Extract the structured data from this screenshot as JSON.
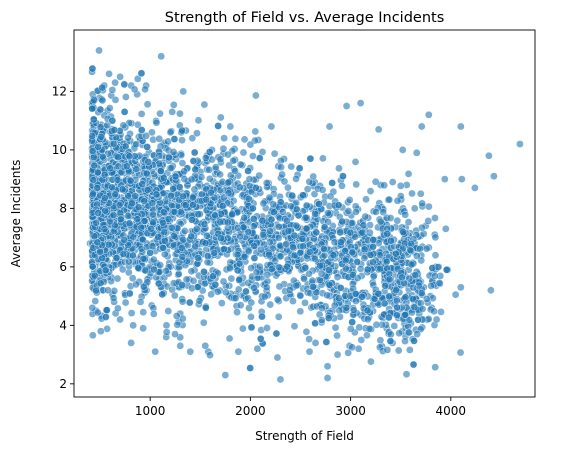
{
  "chart_data": {
    "type": "scatter",
    "title": "Strength of Field vs. Average Incidents",
    "xlabel": "Strength of Field",
    "ylabel": "Average Incidents",
    "xlim": [
      240,
      4840
    ],
    "ylim": [
      1.55,
      14.1
    ],
    "xticks": [
      {
        "value": 1000,
        "label": "1000"
      },
      {
        "value": 2000,
        "label": "2000"
      },
      {
        "value": 3000,
        "label": "3000"
      },
      {
        "value": 4000,
        "label": "4000"
      }
    ],
    "yticks": [
      {
        "value": 2,
        "label": "2"
      },
      {
        "value": 4,
        "label": "4"
      },
      {
        "value": 6,
        "label": "6"
      },
      {
        "value": 8,
        "label": "8"
      },
      {
        "value": 10,
        "label": "10"
      },
      {
        "value": 12,
        "label": "12"
      }
    ],
    "grid": false,
    "marker_color": "#1f77b4",
    "marker_edge_color": "#ffffff",
    "marker_alpha": 0.6,
    "point_count": 3500,
    "points": [
      [
        490,
        13.4
      ],
      [
        590,
        12.6
      ],
      [
        650,
        12.3
      ],
      [
        700,
        12.5
      ],
      [
        810,
        12.2
      ],
      [
        870,
        11.9
      ],
      [
        960,
        12.2
      ],
      [
        1110,
        13.2
      ],
      [
        1330,
        12.0
      ],
      [
        1220,
        11.3
      ],
      [
        2960,
        11.5
      ],
      [
        3100,
        11.6
      ],
      [
        3780,
        11.2
      ],
      [
        4100,
        10.8
      ],
      [
        4690,
        10.2
      ],
      [
        3710,
        10.8
      ],
      [
        4380,
        9.8
      ],
      [
        4430,
        9.1
      ],
      [
        4240,
        8.7
      ],
      [
        4110,
        9.0
      ],
      [
        3520,
        10.0
      ],
      [
        3940,
        9.0
      ],
      [
        3660,
        9.9
      ],
      [
        3280,
        10.7
      ],
      [
        2790,
        10.8
      ],
      [
        2210,
        10.8
      ],
      [
        1800,
        10.8
      ],
      [
        2070,
        3.2
      ],
      [
        2300,
        2.15
      ],
      [
        2770,
        2.2
      ],
      [
        2770,
        2.6
      ],
      [
        1580,
        3.1
      ],
      [
        1750,
        2.3
      ],
      [
        1050,
        3.1
      ],
      [
        3080,
        3.2
      ],
      [
        2870,
        3.0
      ],
      [
        2590,
        3.1
      ],
      [
        3360,
        3.9
      ],
      [
        3440,
        4.4
      ],
      [
        3810,
        4.6
      ],
      [
        4100,
        5.3
      ],
      [
        4400,
        5.2
      ],
      [
        3730,
        5.3
      ],
      [
        3520,
        6.3
      ],
      [
        3580,
        5.9
      ],
      [
        3880,
        6.0
      ],
      [
        3970,
        5.9
      ],
      [
        3840,
        7.1
      ],
      [
        3950,
        7.3
      ],
      [
        3750,
        7.4
      ],
      [
        3640,
        8.0
      ],
      [
        3700,
        8.5
      ],
      [
        3560,
        8.8
      ],
      [
        3420,
        8.9
      ],
      [
        3300,
        8.8
      ],
      [
        3230,
        7.9
      ],
      [
        3110,
        7.1
      ],
      [
        3020,
        7.0
      ],
      [
        3170,
        6.6
      ],
      [
        3280,
        5.9
      ],
      [
        420,
        7.3
      ],
      [
        400,
        6.8
      ],
      [
        460,
        4.5
      ],
      [
        520,
        5.2
      ],
      [
        560,
        4.3
      ],
      [
        640,
        4.8
      ],
      [
        700,
        4.2
      ],
      [
        810,
        3.4
      ],
      [
        830,
        4.0
      ],
      [
        930,
        3.9
      ],
      [
        1160,
        3.6
      ],
      [
        1300,
        3.3
      ],
      [
        1400,
        3.1
      ],
      [
        1550,
        3.3
      ],
      [
        1880,
        3.1
      ],
      [
        2270,
        2.9
      ],
      [
        2650,
        3.4
      ],
      [
        2990,
        3.3
      ],
      [
        3150,
        3.9
      ]
    ]
  }
}
